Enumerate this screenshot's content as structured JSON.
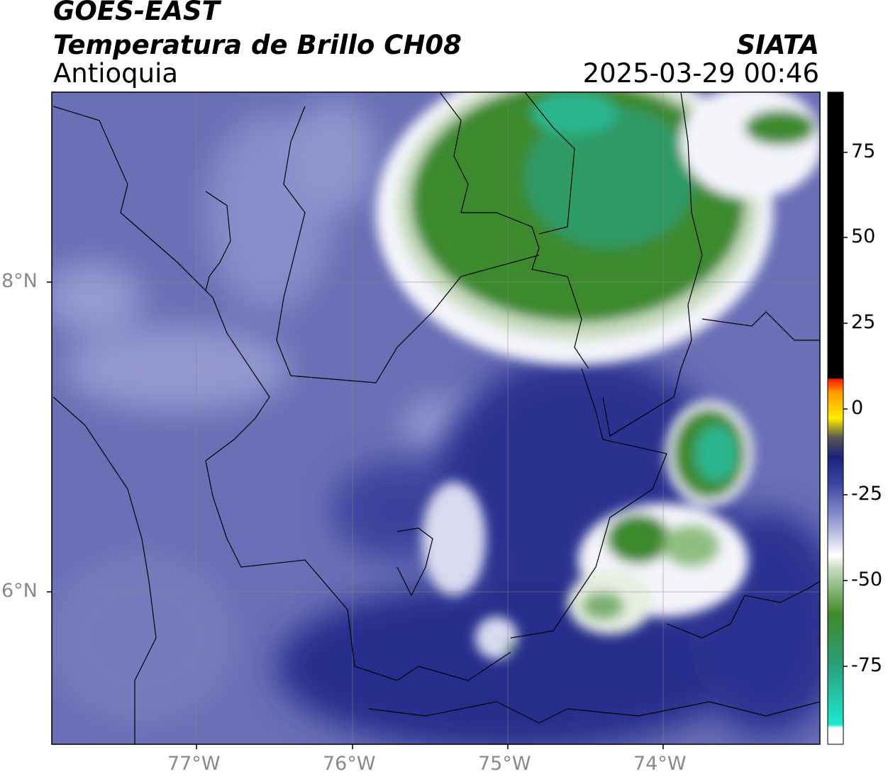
{
  "header": {
    "satellite": "GOES-EAST",
    "product": "Temperatura de Brillo CH08",
    "region": "Antioquia",
    "organization": "SIATA",
    "timestamp": "2025-03-29 00:46"
  },
  "axes": {
    "lat_labels": [
      "8°N",
      "6°N"
    ],
    "lon_labels": [
      "77°W",
      "76°W",
      "75°W",
      "74°W"
    ]
  },
  "colorbar": {
    "tick_labels": [
      "75",
      "50",
      "25",
      "0",
      "-25",
      "-50",
      "-75"
    ],
    "colors": {
      "black": "#000000",
      "red": "#ff1a00",
      "orange": "#ff9900",
      "yellow": "#ffee00",
      "dark_blue": "#1a237e",
      "white": "#ffffff",
      "green": "#3f8a2a",
      "cyan": "#1de9d0"
    }
  },
  "map": {
    "colors": {
      "background_blue": "#6a6fb6",
      "deep_blue": "#242d8a",
      "cloud_white": "#f4f4fa",
      "cloud_green": "#3d8a2e",
      "cloud_cyan": "#2bb68e"
    }
  }
}
